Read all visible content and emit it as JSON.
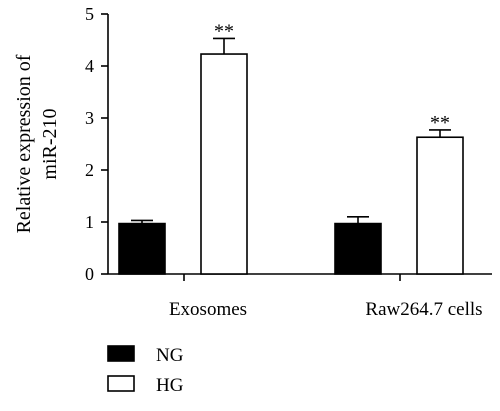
{
  "chart_data": {
    "type": "bar",
    "title": "",
    "xlabel": "",
    "ylabel": "Relative expression of miR-210",
    "ylabel_lines": [
      "Relative expression of",
      "miR-210"
    ],
    "ylim": [
      0,
      5
    ],
    "yticks": [
      0,
      1,
      2,
      3,
      4,
      5
    ],
    "categories": [
      "Exosomes",
      "Raw264.7 cells"
    ],
    "series": [
      {
        "name": "NG",
        "values": [
          0.97,
          0.97
        ],
        "errors": [
          0.06,
          0.13
        ],
        "fill": "#000000"
      },
      {
        "name": "HG",
        "values": [
          4.23,
          2.63
        ],
        "errors": [
          0.3,
          0.14
        ],
        "fill": "#ffffff"
      }
    ],
    "annotations": [
      {
        "series": 1,
        "category": 0,
        "text": "**"
      },
      {
        "series": 1,
        "category": 1,
        "text": "**"
      }
    ],
    "grid": false,
    "legend_position": "bottom-left"
  }
}
